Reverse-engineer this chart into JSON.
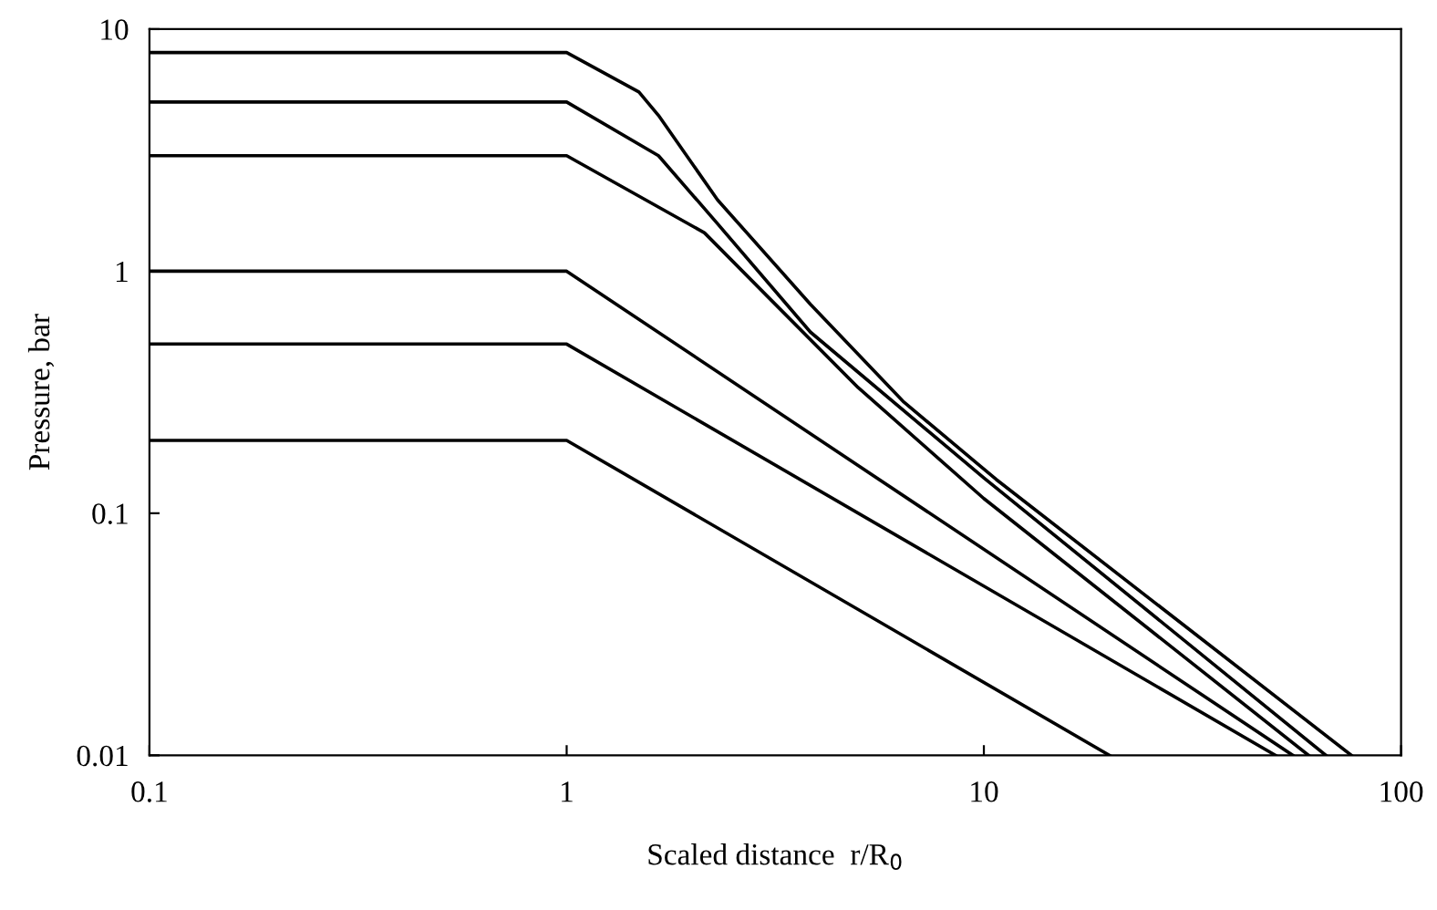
{
  "chart_data": {
    "type": "line",
    "xlabel": "Scaled distance  r/R$_{0}$",
    "ylabel": "Pressure, bar",
    "log": "xy",
    "xlim": [
      0.1,
      100
    ],
    "ylim": [
      0.01,
      10
    ],
    "xticks": [
      0.1,
      1,
      10,
      100
    ],
    "yticks": [
      0.01,
      0.1,
      1,
      10
    ],
    "grid": false,
    "legend": false,
    "marker": "none",
    "line_style": "solid",
    "series": [
      {
        "color": "#000000",
        "x": [
          0.1,
          1,
          1.49,
          1.66,
          2.3,
          3.84,
          6.4,
          10.7,
          76
        ],
        "values": [
          8,
          8,
          5.5,
          4.4,
          1.97,
          0.73,
          0.29,
          0.138,
          0.01
        ]
      },
      {
        "color": "#000000",
        "x": [
          0.1,
          1,
          1.66,
          2.3,
          3.84,
          10,
          66
        ],
        "values": [
          5,
          5,
          3.0,
          1.57,
          0.56,
          0.14,
          0.01
        ]
      },
      {
        "color": "#000000",
        "x": [
          0.1,
          1,
          2.14,
          3,
          5,
          10,
          60
        ],
        "values": [
          3,
          3,
          1.44,
          0.8,
          0.33,
          0.115,
          0.01
        ]
      },
      {
        "color": "#000000",
        "x": [
          0.1,
          1,
          55
        ],
        "values": [
          1,
          1,
          0.01
        ]
      },
      {
        "color": "#000000",
        "x": [
          0.1,
          1,
          50
        ],
        "values": [
          0.5,
          0.5,
          0.01
        ]
      },
      {
        "color": "#000000",
        "x": [
          0.1,
          1,
          20
        ],
        "values": [
          0.2,
          0.2,
          0.01
        ]
      }
    ]
  }
}
